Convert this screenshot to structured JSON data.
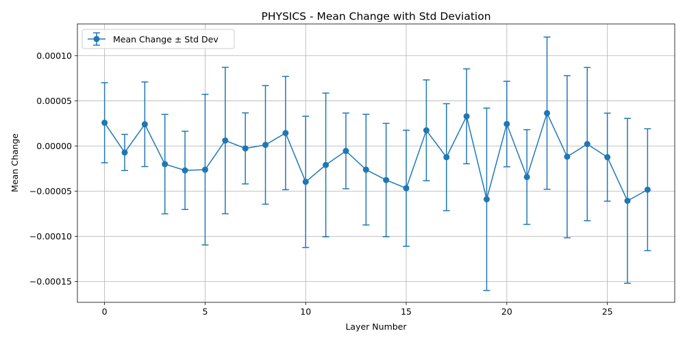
{
  "chart_data": {
    "type": "line",
    "title": "PHYSICS - Mean Change with Std Deviation",
    "xlabel": "Layer Number",
    "ylabel": "Mean Change",
    "xlim": [
      -1.35,
      28.35
    ],
    "ylim": [
      -0.000173,
      0.000135
    ],
    "x_ticks": [
      0,
      5,
      10,
      15,
      20,
      25
    ],
    "y_ticks": [
      -0.00015,
      -0.0001,
      -5e-05,
      0.0,
      5e-05,
      0.0001
    ],
    "y_tick_labels": [
      "−0.00015",
      "−0.00010",
      "−0.00005",
      "0.00000",
      "0.00005",
      "0.00010"
    ],
    "grid": true,
    "legend_position": "top-left",
    "color": "#1f77b4",
    "series": [
      {
        "name": "Mean Change ± Std Dev",
        "x": [
          0,
          1,
          2,
          3,
          4,
          5,
          6,
          7,
          8,
          9,
          10,
          11,
          12,
          13,
          14,
          15,
          16,
          17,
          18,
          19,
          20,
          21,
          22,
          23,
          24,
          25,
          26,
          27
        ],
        "y": [
          2.57e-05,
          -7.2e-06,
          2.4e-05,
          -2.01e-05,
          -2.7e-05,
          -2.62e-05,
          6e-06,
          -2.7e-06,
          1.2e-06,
          1.43e-05,
          -3.97e-05,
          -2.1e-05,
          -5.5e-06,
          -2.62e-05,
          -3.77e-05,
          -4.68e-05,
          1.73e-05,
          -1.24e-05,
          3.28e-05,
          -5.9e-05,
          2.43e-05,
          -3.44e-05,
          3.63e-05,
          -1.19e-05,
          2.1e-06,
          -1.24e-05,
          -6.07e-05,
          -4.84e-05
        ],
        "error": [
          4.43e-05,
          2e-05,
          4.68e-05,
          5.5e-05,
          4.33e-05,
          8.33e-05,
          8.1e-05,
          3.93e-05,
          6.56e-05,
          6.27e-05,
          7.26e-05,
          7.95e-05,
          4.19e-05,
          6.12e-05,
          6.27e-05,
          6.42e-05,
          5.58e-05,
          5.92e-05,
          5.25e-05,
          0.0001009,
          4.73e-05,
          5.24e-05,
          8.42e-05,
          8.97e-05,
          8.48e-05,
          4.87e-05,
          9.12e-05,
          6.74e-05
        ]
      }
    ]
  }
}
